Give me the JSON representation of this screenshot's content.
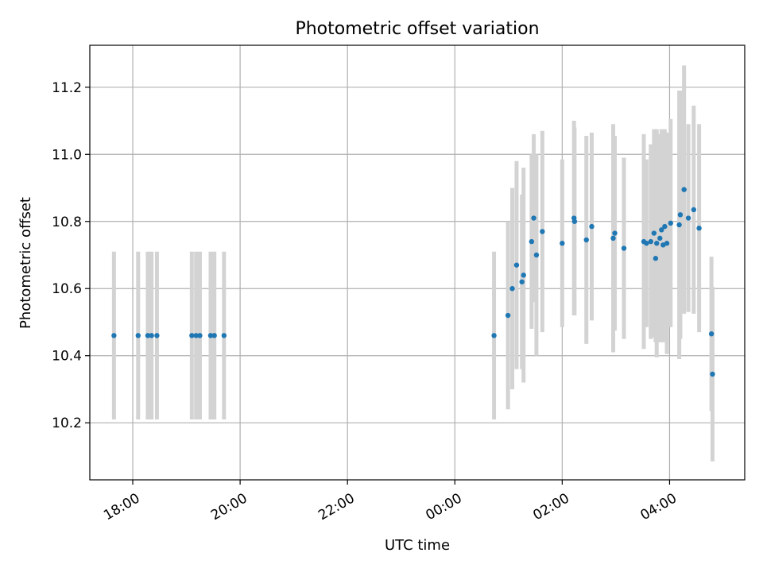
{
  "chart_data": {
    "type": "scatter",
    "title": "Photometric offset variation",
    "xlabel": "UTC time",
    "ylabel": "Photometric offset",
    "x_unit": "hours since 00:00 UTC (negative = previous day)",
    "xlim": [
      -6.8,
      5.4
    ],
    "ylim": [
      10.03,
      11.325
    ],
    "x_ticks": [
      {
        "value": -6,
        "label": "18:00"
      },
      {
        "value": -4,
        "label": "20:00"
      },
      {
        "value": -2,
        "label": "22:00"
      },
      {
        "value": 0,
        "label": "00:00"
      },
      {
        "value": 2,
        "label": "02:00"
      },
      {
        "value": 4,
        "label": "04:00"
      }
    ],
    "y_ticks": [
      {
        "value": 10.2,
        "label": "10.2"
      },
      {
        "value": 10.4,
        "label": "10.4"
      },
      {
        "value": 10.6,
        "label": "10.6"
      },
      {
        "value": 10.8,
        "label": "10.8"
      },
      {
        "value": 11.0,
        "label": "11.0"
      },
      {
        "value": 11.2,
        "label": "11.2"
      }
    ],
    "grid": true,
    "marker_color": "#1f77b4",
    "errorbar_color": "#d3d3d3",
    "points": [
      {
        "x": -6.35,
        "y": 10.46,
        "err": 0.25
      },
      {
        "x": -5.9,
        "y": 10.46,
        "err": 0.25
      },
      {
        "x": -5.72,
        "y": 10.46,
        "err": 0.25
      },
      {
        "x": -5.65,
        "y": 10.46,
        "err": 0.25
      },
      {
        "x": -5.55,
        "y": 10.46,
        "err": 0.25
      },
      {
        "x": -4.9,
        "y": 10.46,
        "err": 0.25
      },
      {
        "x": -4.82,
        "y": 10.46,
        "err": 0.25
      },
      {
        "x": -4.75,
        "y": 10.46,
        "err": 0.25
      },
      {
        "x": -4.55,
        "y": 10.46,
        "err": 0.25
      },
      {
        "x": -4.48,
        "y": 10.46,
        "err": 0.25
      },
      {
        "x": -4.3,
        "y": 10.46,
        "err": 0.25
      },
      {
        "x": 0.73,
        "y": 10.46,
        "err": 0.25
      },
      {
        "x": 0.99,
        "y": 10.52,
        "err": 0.28
      },
      {
        "x": 1.07,
        "y": 10.6,
        "err": 0.3
      },
      {
        "x": 1.15,
        "y": 10.67,
        "err": 0.31
      },
      {
        "x": 1.25,
        "y": 10.62,
        "err": 0.26
      },
      {
        "x": 1.28,
        "y": 10.64,
        "err": 0.32
      },
      {
        "x": 1.43,
        "y": 10.74,
        "err": 0.26
      },
      {
        "x": 1.47,
        "y": 10.81,
        "err": 0.25
      },
      {
        "x": 1.52,
        "y": 10.7,
        "err": 0.3
      },
      {
        "x": 1.63,
        "y": 10.77,
        "err": 0.3
      },
      {
        "x": 2.0,
        "y": 10.735,
        "err": 0.25
      },
      {
        "x": 2.22,
        "y": 10.81,
        "err": 0.29
      },
      {
        "x": 2.23,
        "y": 10.8,
        "err": 0.28
      },
      {
        "x": 2.45,
        "y": 10.745,
        "err": 0.31
      },
      {
        "x": 2.55,
        "y": 10.785,
        "err": 0.28
      },
      {
        "x": 2.95,
        "y": 10.75,
        "err": 0.34
      },
      {
        "x": 2.98,
        "y": 10.765,
        "err": 0.29
      },
      {
        "x": 3.15,
        "y": 10.72,
        "err": 0.27
      },
      {
        "x": 3.52,
        "y": 10.74,
        "err": 0.32
      },
      {
        "x": 3.57,
        "y": 10.735,
        "err": 0.25
      },
      {
        "x": 3.65,
        "y": 10.74,
        "err": 0.29
      },
      {
        "x": 3.71,
        "y": 10.765,
        "err": 0.31
      },
      {
        "x": 3.74,
        "y": 10.69,
        "err": 0.25
      },
      {
        "x": 3.76,
        "y": 10.735,
        "err": 0.34
      },
      {
        "x": 3.82,
        "y": 10.75,
        "err": 0.31
      },
      {
        "x": 3.85,
        "y": 10.775,
        "err": 0.3
      },
      {
        "x": 3.88,
        "y": 10.73,
        "err": 0.29
      },
      {
        "x": 3.91,
        "y": 10.785,
        "err": 0.29
      },
      {
        "x": 3.95,
        "y": 10.735,
        "err": 0.33
      },
      {
        "x": 4.02,
        "y": 10.795,
        "err": 0.31
      },
      {
        "x": 4.18,
        "y": 10.79,
        "err": 0.4
      },
      {
        "x": 4.2,
        "y": 10.82,
        "err": 0.37
      },
      {
        "x": 4.27,
        "y": 10.895,
        "err": 0.37
      },
      {
        "x": 4.35,
        "y": 10.81,
        "err": 0.28
      },
      {
        "x": 4.45,
        "y": 10.835,
        "err": 0.31
      },
      {
        "x": 4.55,
        "y": 10.78,
        "err": 0.31
      },
      {
        "x": 4.78,
        "y": 10.465,
        "err": 0.23
      },
      {
        "x": 4.8,
        "y": 10.345,
        "err": 0.26
      }
    ]
  }
}
